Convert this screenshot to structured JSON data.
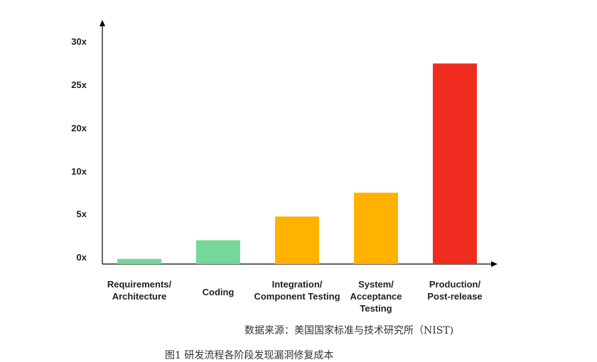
{
  "chart_data": {
    "type": "bar",
    "title": "",
    "xlabel": "",
    "ylabel": "",
    "ylim": [
      0,
      30
    ],
    "y_ticks": [
      "0x",
      "5x",
      "10x",
      "20x",
      "25x",
      "30x"
    ],
    "categories": [
      [
        "Requirements/",
        "Architecture"
      ],
      [
        "Coding"
      ],
      [
        "Integration/",
        "Component Testing"
      ],
      [
        "System/",
        "Acceptance",
        "Testing"
      ],
      [
        "Production/",
        "Post-release"
      ]
    ],
    "values": [
      0.7,
      3.2,
      6.4,
      9.6,
      27
    ],
    "colors": [
      "#74d89a",
      "#74d89a",
      "#ffb300",
      "#ffb300",
      "#f02c21"
    ],
    "grid": false,
    "legend": "none"
  },
  "source_text": "数据来源：美国国家标准与技术研究所（NIST)",
  "caption_text": "图1 研发流程各阶段发现漏洞修复成本"
}
